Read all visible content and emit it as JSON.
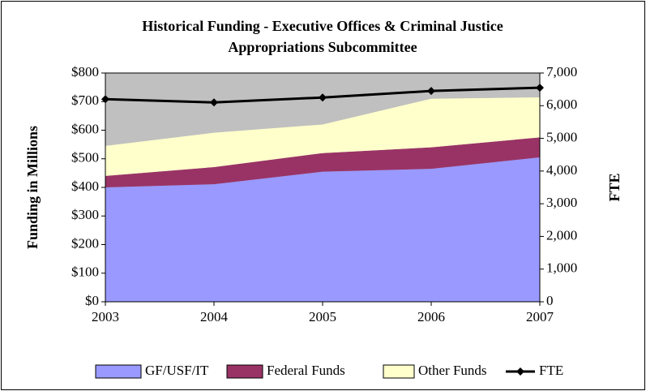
{
  "chart_data": {
    "type": "stacked-area",
    "title": "Historical Funding - Executive Offices & Criminal Justice",
    "subtitle": "Appropriations Subcommittee",
    "y_label": "Funding in Millions",
    "y2_label": "FTE",
    "categories": [
      "2003",
      "2004",
      "2005",
      "2006",
      "2007"
    ],
    "series": [
      {
        "name": "GF/USF/IT",
        "color": "#9999ff",
        "values": [
          400,
          411,
          455,
          465,
          505
        ]
      },
      {
        "name": "Federal Funds",
        "color": "#993366",
        "values": [
          40,
          60,
          65,
          75,
          70
        ]
      },
      {
        "name": "Other Funds",
        "color": "#ffffcc",
        "values": [
          105,
          120,
          100,
          170,
          140
        ]
      },
      {
        "name": "FTE",
        "color": "#000000",
        "type": "line",
        "axis": "y2",
        "values": [
          6200,
          6100,
          6250,
          6450,
          6550
        ]
      }
    ],
    "ylim": [
      0,
      800
    ],
    "yticks": [
      {
        "value": 0,
        "label": "$0"
      },
      {
        "value": 100,
        "label": "$100"
      },
      {
        "value": 200,
        "label": "$200"
      },
      {
        "value": 300,
        "label": "$300"
      },
      {
        "value": 400,
        "label": "$400"
      },
      {
        "value": 500,
        "label": "$500"
      },
      {
        "value": 600,
        "label": "$600"
      },
      {
        "value": 700,
        "label": "$700"
      },
      {
        "value": 800,
        "label": "$800"
      }
    ],
    "y2lim": [
      0,
      7000
    ],
    "y2ticks": [
      0,
      {
        "value": 1000,
        "label": "1,000"
      },
      {
        "value": 2000,
        "label": "2,000"
      },
      {
        "value": 3000,
        "label": "3,000"
      },
      {
        "value": 4000,
        "label": "4,000"
      },
      {
        "value": 5000,
        "label": "5,000"
      },
      {
        "value": 6000,
        "label": "6,000"
      },
      {
        "value": 7000,
        "label": "7,000"
      }
    ],
    "plot_background": "#c0c0c0",
    "grid": false,
    "legend": "bottom"
  }
}
